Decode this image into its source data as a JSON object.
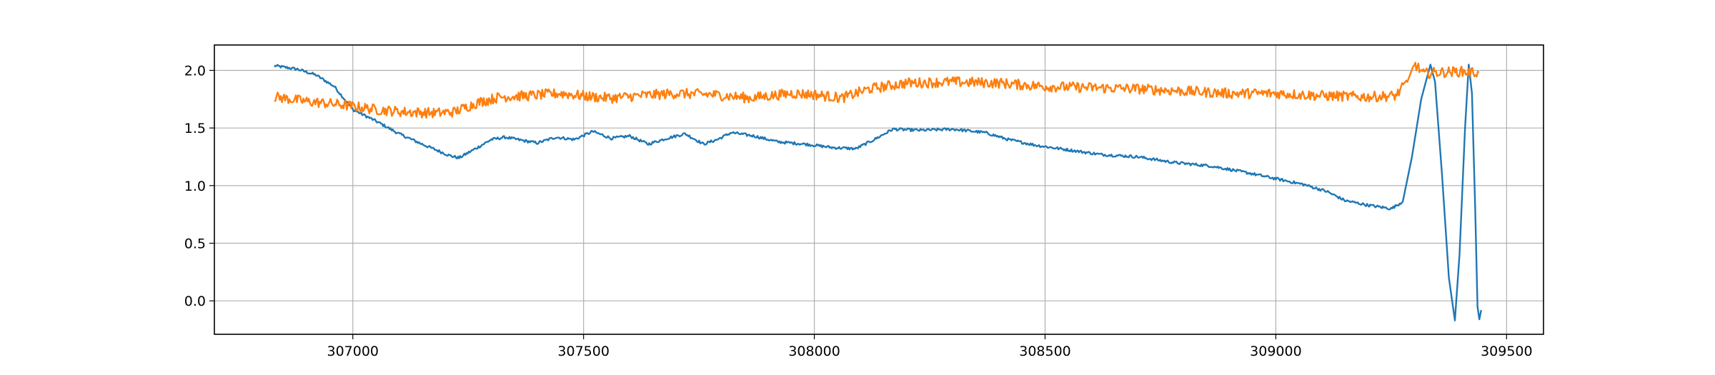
{
  "chart_data": {
    "type": "line",
    "title": "",
    "xlabel": "",
    "ylabel": "",
    "xlim": [
      306700,
      309580
    ],
    "ylim": [
      -0.29,
      2.22
    ],
    "grid": true,
    "legend": "none",
    "x_ticks": [
      307000,
      307500,
      308000,
      308500,
      309000,
      309500
    ],
    "x_tick_labels": [
      "307000",
      "307500",
      "308000",
      "308500",
      "309000",
      "309500"
    ],
    "y_ticks": [
      0.0,
      0.5,
      1.0,
      1.5,
      2.0
    ],
    "y_tick_labels": [
      "0.0",
      "0.5",
      "1.0",
      "1.5",
      "2.0"
    ],
    "series": [
      {
        "color": "#1f77b4",
        "noise": 0.012,
        "points": [
          [
            306830,
            2.04
          ],
          [
            306880,
            2.01
          ],
          [
            306920,
            1.96
          ],
          [
            306960,
            1.86
          ],
          [
            307000,
            1.66
          ],
          [
            307050,
            1.56
          ],
          [
            307100,
            1.45
          ],
          [
            307150,
            1.36
          ],
          [
            307210,
            1.26
          ],
          [
            307230,
            1.24
          ],
          [
            307270,
            1.33
          ],
          [
            307300,
            1.4
          ],
          [
            307330,
            1.42
          ],
          [
            307370,
            1.39
          ],
          [
            307400,
            1.37
          ],
          [
            307440,
            1.42
          ],
          [
            307480,
            1.4
          ],
          [
            307520,
            1.47
          ],
          [
            307560,
            1.41
          ],
          [
            307600,
            1.43
          ],
          [
            307640,
            1.36
          ],
          [
            307680,
            1.41
          ],
          [
            307720,
            1.45
          ],
          [
            307760,
            1.36
          ],
          [
            307790,
            1.4
          ],
          [
            307820,
            1.46
          ],
          [
            307870,
            1.43
          ],
          [
            307920,
            1.38
          ],
          [
            307980,
            1.36
          ],
          [
            308040,
            1.33
          ],
          [
            308090,
            1.32
          ],
          [
            308130,
            1.4
          ],
          [
            308170,
            1.49
          ],
          [
            308230,
            1.48
          ],
          [
            308300,
            1.49
          ],
          [
            308370,
            1.46
          ],
          [
            308420,
            1.4
          ],
          [
            308480,
            1.35
          ],
          [
            308550,
            1.31
          ],
          [
            308620,
            1.27
          ],
          [
            308700,
            1.25
          ],
          [
            308780,
            1.2
          ],
          [
            308860,
            1.17
          ],
          [
            308940,
            1.11
          ],
          [
            309000,
            1.06
          ],
          [
            309060,
            1.01
          ],
          [
            309110,
            0.95
          ],
          [
            309150,
            0.87
          ],
          [
            309200,
            0.83
          ],
          [
            309250,
            0.8
          ],
          [
            309275,
            0.86
          ],
          [
            309295,
            1.25
          ],
          [
            309315,
            1.75
          ],
          [
            309335,
            2.05
          ],
          [
            309345,
            1.9
          ],
          [
            309360,
            1.1
          ],
          [
            309375,
            0.2
          ],
          [
            309388,
            -0.17
          ],
          [
            309398,
            0.4
          ],
          [
            309410,
            1.5
          ],
          [
            309418,
            2.05
          ],
          [
            309425,
            1.8
          ],
          [
            309432,
            0.8
          ],
          [
            309437,
            -0.05
          ],
          [
            309441,
            -0.16
          ],
          [
            309445,
            -0.08
          ]
        ]
      },
      {
        "color": "#ff7f0e",
        "noise": 0.045,
        "points": [
          [
            306830,
            1.77
          ],
          [
            306900,
            1.73
          ],
          [
            306980,
            1.7
          ],
          [
            307050,
            1.66
          ],
          [
            307110,
            1.64
          ],
          [
            307180,
            1.63
          ],
          [
            307220,
            1.64
          ],
          [
            307270,
            1.72
          ],
          [
            307320,
            1.77
          ],
          [
            307380,
            1.78
          ],
          [
            307450,
            1.8
          ],
          [
            307520,
            1.77
          ],
          [
            307560,
            1.76
          ],
          [
            307620,
            1.78
          ],
          [
            307700,
            1.8
          ],
          [
            307780,
            1.79
          ],
          [
            307860,
            1.76
          ],
          [
            307950,
            1.8
          ],
          [
            308000,
            1.79
          ],
          [
            308060,
            1.76
          ],
          [
            308120,
            1.84
          ],
          [
            308200,
            1.89
          ],
          [
            308300,
            1.9
          ],
          [
            308400,
            1.89
          ],
          [
            308500,
            1.86
          ],
          [
            308600,
            1.85
          ],
          [
            308700,
            1.84
          ],
          [
            308800,
            1.82
          ],
          [
            308900,
            1.8
          ],
          [
            309000,
            1.8
          ],
          [
            309100,
            1.78
          ],
          [
            309200,
            1.77
          ],
          [
            309260,
            1.78
          ],
          [
            309285,
            1.9
          ],
          [
            309300,
            2.06
          ],
          [
            309320,
            1.97
          ],
          [
            309340,
            1.98
          ],
          [
            309400,
            1.99
          ],
          [
            309440,
            1.98
          ]
        ]
      }
    ]
  }
}
